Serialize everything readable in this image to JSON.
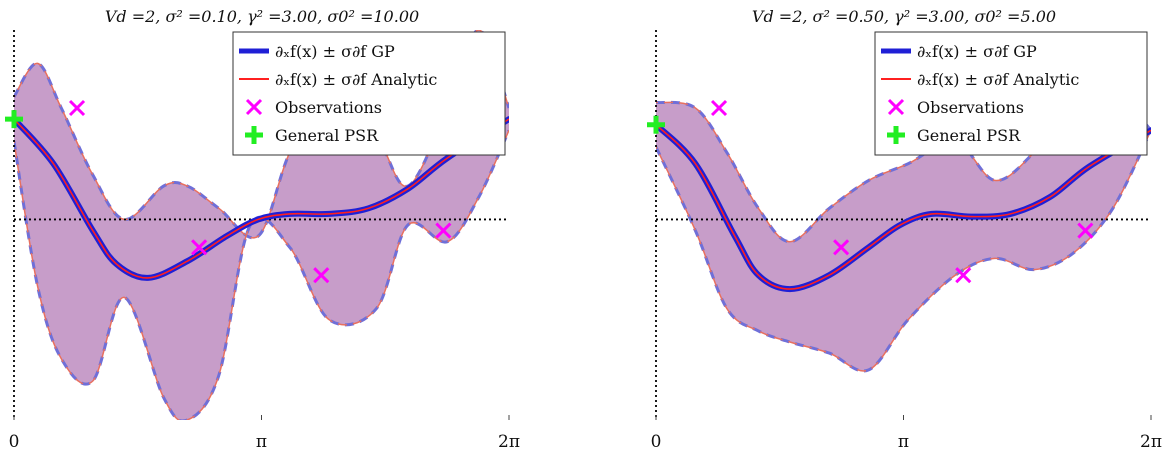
{
  "chart_data": [
    {
      "type": "line",
      "title": "Vd =2, σ² =0.10, γ² =3.00, σ0² =10.00",
      "x_ticks": [
        "0",
        "π",
        "2π"
      ],
      "xlim": [
        0,
        6.2832
      ],
      "ylim": [
        -3.6,
        3.4
      ],
      "grid": false,
      "legend_position": "top-right",
      "legend": [
        {
          "label": "∂ₓf(x) ± σ∂f GP",
          "color": "#1f1fd6",
          "marker": "line"
        },
        {
          "label": "∂ₓf(x) ± σ∂f Analytic",
          "color": "#ff2020",
          "marker": "line"
        },
        {
          "label": "Observations",
          "color": "#ff00ff",
          "marker": "x"
        },
        {
          "label": "General PSR",
          "color": "#22ee22",
          "marker": "plus"
        }
      ],
      "series": [
        {
          "name": "mean",
          "x": [
            0,
            0.5,
            1.0,
            1.3,
            1.7,
            2.2,
            2.7,
            3.1,
            3.5,
            4.0,
            4.5,
            5.0,
            5.5,
            6.2832
          ],
          "values": [
            1.8,
            1.0,
            -0.2,
            -0.8,
            -1.05,
            -0.75,
            -0.3,
            0.0,
            0.1,
            0.1,
            0.2,
            0.55,
            1.1,
            1.8
          ]
        },
        {
          "name": "upper",
          "x": [
            0,
            0.3,
            0.6,
            1.0,
            1.4,
            1.9,
            2.2,
            2.6,
            3.1,
            3.5,
            4.0,
            4.6,
            5.0,
            5.5,
            5.9,
            6.2832
          ],
          "values": [
            2.2,
            2.8,
            2.0,
            0.8,
            0.0,
            0.6,
            0.6,
            0.2,
            -0.3,
            1.2,
            2.4,
            1.5,
            0.6,
            2.0,
            3.4,
            2.0
          ]
        },
        {
          "name": "lower",
          "x": [
            0,
            0.3,
            0.6,
            1.0,
            1.4,
            1.9,
            2.2,
            2.6,
            3.0,
            3.5,
            4.0,
            4.6,
            5.0,
            5.5,
            5.9,
            6.2832
          ],
          "values": [
            1.4,
            -1.2,
            -2.5,
            -2.9,
            -1.4,
            -3.2,
            -3.6,
            -2.8,
            -0.1,
            -0.5,
            -1.8,
            -1.6,
            -0.1,
            -0.4,
            0.4,
            1.6
          ]
        }
      ],
      "observations": {
        "x": [
          0.8,
          2.35,
          3.9,
          5.45
        ],
        "y": [
          2.0,
          -0.5,
          -1.0,
          -0.2
        ]
      },
      "general_psr": {
        "x": [
          0
        ],
        "y": [
          1.8
        ]
      }
    },
    {
      "type": "line",
      "title": "Vd =2, σ² =0.50, γ² =3.00, σ0² =5.00",
      "x_ticks": [
        "0",
        "π",
        "2π"
      ],
      "xlim": [
        0,
        6.2832
      ],
      "ylim": [
        -3.6,
        3.4
      ],
      "grid": false,
      "legend_position": "top-right",
      "legend": [
        {
          "label": "∂ₓf(x) ± σ∂f GP",
          "color": "#1f1fd6",
          "marker": "line"
        },
        {
          "label": "∂ₓf(x) ± σ∂f Analytic",
          "color": "#ff2020",
          "marker": "line"
        },
        {
          "label": "Observations",
          "color": "#ff00ff",
          "marker": "x"
        },
        {
          "label": "General PSR",
          "color": "#22ee22",
          "marker": "plus"
        }
      ],
      "series": [
        {
          "name": "mean",
          "x": [
            0,
            0.5,
            1.0,
            1.3,
            1.7,
            2.2,
            2.7,
            3.1,
            3.5,
            4.0,
            4.5,
            5.0,
            5.5,
            6.2832
          ],
          "values": [
            1.7,
            1.0,
            -0.3,
            -1.0,
            -1.25,
            -1.0,
            -0.5,
            -0.1,
            0.1,
            0.05,
            0.1,
            0.4,
            0.95,
            1.6
          ]
        },
        {
          "name": "upper",
          "x": [
            0,
            0.5,
            0.9,
            1.3,
            1.7,
            2.2,
            2.7,
            3.2,
            3.8,
            4.3,
            4.8,
            5.3,
            5.8,
            6.2832
          ],
          "values": [
            2.1,
            2.0,
            1.2,
            0.2,
            -0.4,
            0.2,
            0.7,
            1.0,
            1.4,
            0.7,
            1.2,
            2.0,
            2.3,
            1.6
          ]
        },
        {
          "name": "lower",
          "x": [
            0,
            0.5,
            0.9,
            1.3,
            1.7,
            2.2,
            2.7,
            3.2,
            3.8,
            4.3,
            4.8,
            5.3,
            5.8,
            6.2832
          ],
          "values": [
            1.3,
            -0.2,
            -1.6,
            -2.0,
            -2.2,
            -2.4,
            -2.7,
            -1.8,
            -1.0,
            -0.7,
            -0.9,
            -0.6,
            0.2,
            1.6
          ]
        }
      ],
      "observations": {
        "x": [
          0.8,
          2.35,
          3.9,
          5.45
        ],
        "y": [
          2.0,
          -0.5,
          -1.0,
          -0.2
        ]
      },
      "general_psr": {
        "x": [
          0
        ],
        "y": [
          1.7
        ]
      }
    }
  ]
}
